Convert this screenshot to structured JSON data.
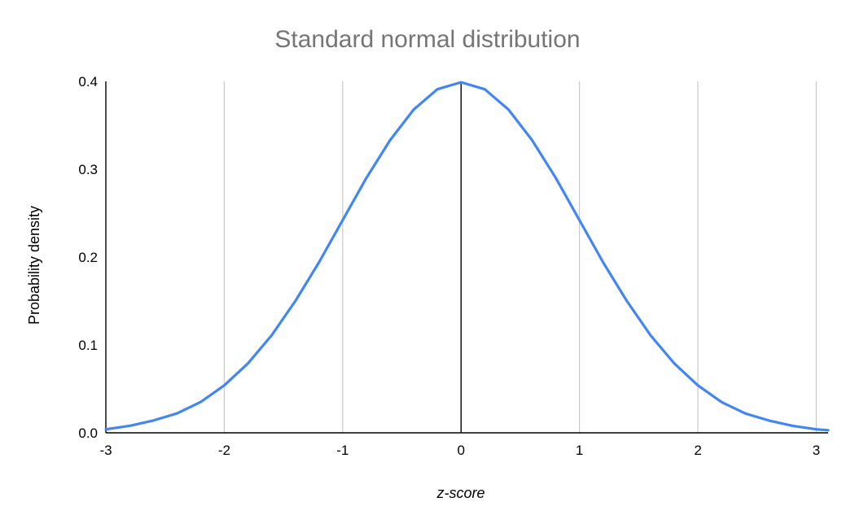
{
  "chart_data": {
    "type": "line",
    "title": "Standard normal distribution",
    "xlabel": "z-score",
    "ylabel": "Probability density",
    "xlim": [
      -3,
      3.1
    ],
    "ylim": [
      0,
      0.4
    ],
    "x_ticks": [
      -3,
      -2,
      -1,
      0,
      1,
      2,
      3
    ],
    "x_tick_labels": [
      "-3",
      "-2",
      "-1",
      "0",
      "1",
      "2",
      "3"
    ],
    "y_ticks": [
      0,
      0.1,
      0.2,
      0.3,
      0.4
    ],
    "y_tick_labels": [
      "0.0",
      "0.1",
      "0.2",
      "0.3",
      "0.4"
    ],
    "grid": "vertical",
    "legend": "none",
    "series": [
      {
        "x": [
          -3.0,
          -2.8,
          -2.6,
          -2.4,
          -2.2,
          -2.0,
          -1.8,
          -1.6,
          -1.4,
          -1.2,
          -1.0,
          -0.8,
          -0.6,
          -0.4,
          -0.2,
          0.0,
          0.2,
          0.4,
          0.6,
          0.8,
          1.0,
          1.2,
          1.4,
          1.6,
          1.8,
          2.0,
          2.2,
          2.4,
          2.6,
          2.8,
          3.0,
          3.1
        ],
        "y": [
          0.004,
          0.008,
          0.014,
          0.022,
          0.035,
          0.054,
          0.079,
          0.111,
          0.15,
          0.194,
          0.242,
          0.29,
          0.333,
          0.368,
          0.391,
          0.399,
          0.391,
          0.368,
          0.333,
          0.29,
          0.242,
          0.194,
          0.15,
          0.111,
          0.079,
          0.054,
          0.035,
          0.022,
          0.014,
          0.008,
          0.004,
          0.003
        ]
      }
    ],
    "colors": {
      "line": "#4285f4",
      "gridline": "#c8c8c8",
      "axis": "#000000",
      "title": "#757575"
    }
  }
}
